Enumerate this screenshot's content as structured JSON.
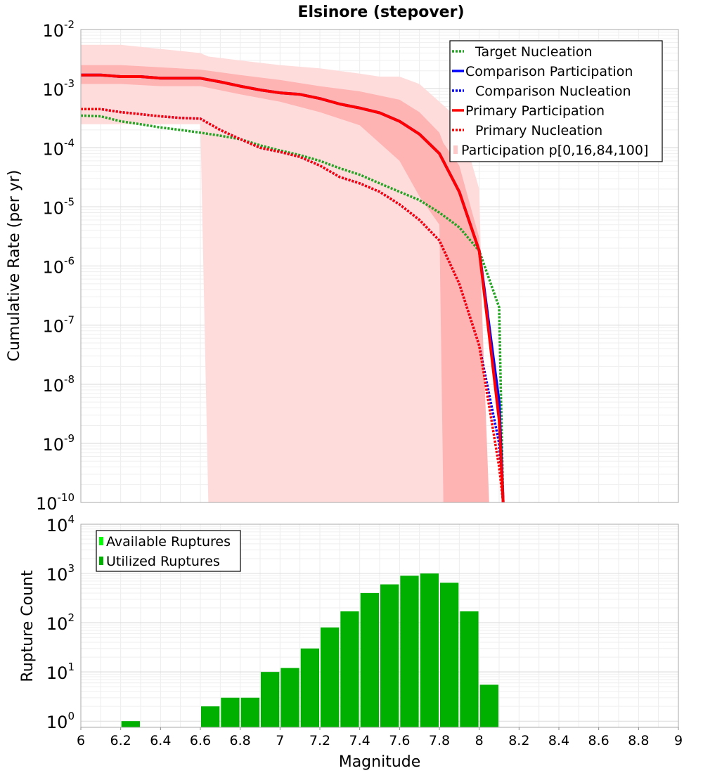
{
  "title": "Elsinore (stepover)",
  "chart_data": [
    {
      "type": "line",
      "title": "Elsinore (stepover)",
      "xlabel": "",
      "ylabel": "Cumulative Rate (per yr)",
      "xlim": [
        6,
        9
      ],
      "ylim": [
        1e-10,
        0.01
      ],
      "yscale": "log",
      "grid": true,
      "legend_position": "top-right",
      "yticks": [
        {
          "exp": "-2"
        },
        {
          "exp": "-3"
        },
        {
          "exp": "-4"
        },
        {
          "exp": "-5"
        },
        {
          "exp": "-6"
        },
        {
          "exp": "-7"
        },
        {
          "exp": "-8"
        },
        {
          "exp": "-9"
        },
        {
          "exp": "-10"
        }
      ],
      "legend": [
        {
          "label": "Target Nucleation",
          "color": "#22a322",
          "style": "dotted"
        },
        {
          "label": "Comparison Participation",
          "color": "#0000ff",
          "style": "solid"
        },
        {
          "label": "Comparison Nucleation",
          "color": "#0000ff",
          "style": "dotted"
        },
        {
          "label": "Primary Participation",
          "color": "#ff0000",
          "style": "solid"
        },
        {
          "label": "Primary Nucleation",
          "color": "#ff0000",
          "style": "dotted"
        },
        {
          "label": "Participation p[0,16,84,100]",
          "color": "#ffc8c8",
          "style": "band"
        }
      ],
      "series": [
        {
          "name": "Target Nucleation",
          "color": "#22a322",
          "style": "dotted",
          "x": [
            6.0,
            6.1,
            6.2,
            6.3,
            6.4,
            6.5,
            6.6,
            6.7,
            6.8,
            6.9,
            7.0,
            7.1,
            7.2,
            7.3,
            7.4,
            7.5,
            7.6,
            7.7,
            7.8,
            7.9,
            8.0,
            8.1,
            8.12
          ],
          "y": [
            0.00035,
            0.00034,
            0.00028,
            0.00025,
            0.00022,
            0.0002,
            0.00018,
            0.00016,
            0.00014,
            0.00011,
            9e-05,
            7.5e-05,
            6e-05,
            4.5e-05,
            3.5e-05,
            2.5e-05,
            1.8e-05,
            1.3e-05,
            8e-06,
            4.5e-06,
            1.8e-06,
            2e-07,
            1e-10
          ]
        },
        {
          "name": "Comparison Participation",
          "color": "#0000ff",
          "style": "solid",
          "x": [
            6.0,
            6.1,
            6.2,
            6.3,
            6.4,
            6.5,
            6.6,
            6.7,
            6.8,
            6.9,
            7.0,
            7.1,
            7.2,
            7.3,
            7.4,
            7.5,
            7.6,
            7.7,
            7.8,
            7.9,
            8.0,
            8.1,
            8.12
          ],
          "y": [
            0.0017,
            0.0017,
            0.0016,
            0.0016,
            0.0015,
            0.0015,
            0.0015,
            0.0013,
            0.0011,
            0.00095,
            0.00085,
            0.0008,
            0.00068,
            0.00055,
            0.00047,
            0.00039,
            0.00028,
            0.00017,
            8e-05,
            1.8e-05,
            1.8e-06,
            5e-09,
            1e-10
          ]
        },
        {
          "name": "Comparison Nucleation",
          "color": "#0000ff",
          "style": "dotted",
          "x": [
            6.0,
            6.1,
            6.2,
            6.3,
            6.4,
            6.5,
            6.6,
            6.7,
            6.8,
            6.9,
            7.0,
            7.1,
            7.2,
            7.3,
            7.4,
            7.5,
            7.6,
            7.7,
            7.8,
            7.9,
            8.0,
            8.1,
            8.12
          ],
          "y": [
            0.00045,
            0.00045,
            0.0004,
            0.00037,
            0.00034,
            0.00032,
            0.00031,
            0.0002,
            0.00014,
            0.0001,
            8.5e-05,
            7e-05,
            5e-05,
            3.2e-05,
            2.5e-05,
            1.8e-05,
            1.1e-05,
            6e-06,
            2.7e-06,
            5e-07,
            4.5e-08,
            1e-09,
            1e-10
          ]
        },
        {
          "name": "Primary Participation",
          "color": "#ff0000",
          "style": "solid",
          "x": [
            6.0,
            6.1,
            6.2,
            6.3,
            6.4,
            6.5,
            6.6,
            6.7,
            6.8,
            6.9,
            7.0,
            7.1,
            7.2,
            7.3,
            7.4,
            7.5,
            7.6,
            7.7,
            7.8,
            7.9,
            8.0,
            8.1,
            8.12
          ],
          "y": [
            0.0017,
            0.0017,
            0.0016,
            0.0016,
            0.0015,
            0.0015,
            0.0015,
            0.0013,
            0.0011,
            0.00095,
            0.00085,
            0.0008,
            0.00068,
            0.00055,
            0.00047,
            0.00039,
            0.00028,
            0.00017,
            8e-05,
            1.8e-05,
            1.8e-06,
            2.5e-09,
            1e-10
          ]
        },
        {
          "name": "Primary Nucleation",
          "color": "#ff0000",
          "style": "dotted",
          "x": [
            6.0,
            6.1,
            6.2,
            6.3,
            6.4,
            6.5,
            6.6,
            6.7,
            6.8,
            6.9,
            7.0,
            7.1,
            7.2,
            7.3,
            7.4,
            7.5,
            7.6,
            7.7,
            7.8,
            7.9,
            8.0,
            8.1,
            8.12
          ],
          "y": [
            0.00045,
            0.00045,
            0.0004,
            0.00037,
            0.00034,
            0.00032,
            0.00031,
            0.0002,
            0.00014,
            0.0001,
            8.5e-05,
            7e-05,
            5e-05,
            3.2e-05,
            2.5e-05,
            1.8e-05,
            1.1e-05,
            6e-06,
            2.7e-06,
            5e-07,
            4.5e-08,
            4e-10,
            1e-10
          ]
        }
      ],
      "bands": [
        {
          "name": "Participation p[0,100]",
          "color": "#ffdcdc",
          "x": [
            6.0,
            6.2,
            6.6,
            6.64,
            6.8,
            7.0,
            7.2,
            7.4,
            7.5,
            7.6,
            7.7,
            7.8,
            7.9,
            8.0,
            8.04
          ],
          "lower": [
            0.00025,
            0.00025,
            0.00025,
            1e-10,
            1e-10,
            1e-10,
            1e-10,
            1e-10,
            1e-10,
            1e-10,
            1e-10,
            1e-10,
            1e-10,
            1e-10,
            1e-10
          ],
          "upper": [
            0.0055,
            0.0055,
            0.004,
            0.0035,
            0.003,
            0.0025,
            0.0022,
            0.0018,
            0.0016,
            0.0016,
            0.0012,
            0.0006,
            0.0003,
            2e-05,
            1e-10
          ]
        },
        {
          "name": "Participation p[16,84]",
          "color": "#ffb4b4",
          "x": [
            6.0,
            6.2,
            6.4,
            6.6,
            6.8,
            7.0,
            7.2,
            7.4,
            7.6,
            7.7,
            7.8,
            7.82,
            7.9,
            8.0,
            8.05
          ],
          "lower": [
            0.0012,
            0.0012,
            0.0011,
            0.0011,
            0.0008,
            0.0006,
            0.0004,
            0.00024,
            6e-05,
            1.5e-05,
            5e-06,
            1e-10,
            1e-10,
            1e-10,
            1e-10
          ],
          "upper": [
            0.0025,
            0.0025,
            0.0023,
            0.0021,
            0.0017,
            0.0014,
            0.0011,
            0.0009,
            0.00065,
            0.0004,
            0.00018,
            0.00012,
            5e-05,
            3e-06,
            1e-10
          ]
        }
      ]
    },
    {
      "type": "bar",
      "title": "",
      "xlabel": "Magnitude",
      "ylabel": "Rupture Count",
      "xlim": [
        6,
        9
      ],
      "ylim": [
        0.75,
        10000
      ],
      "yscale": "log",
      "grid": true,
      "legend_position": "top-left",
      "xticks": [
        "6",
        "6.2",
        "6.4",
        "6.6",
        "6.8",
        "7",
        "7.2",
        "7.4",
        "7.6",
        "7.8",
        "8",
        "8.2",
        "8.4",
        "8.6",
        "8.8",
        "9"
      ],
      "yticks": [
        {
          "exp": "4"
        },
        {
          "exp": "3"
        },
        {
          "exp": "2"
        },
        {
          "exp": "1"
        },
        {
          "exp": "0"
        }
      ],
      "legend": [
        {
          "label": "Available Ruptures",
          "color": "#00ff00"
        },
        {
          "label": "Utilized Ruptures",
          "color": "#00b000"
        }
      ],
      "bar_width": 0.1,
      "series": [
        {
          "name": "Utilized Ruptures",
          "color": "#00b000",
          "x": [
            6.25,
            6.65,
            6.75,
            6.85,
            6.95,
            7.05,
            7.15,
            7.25,
            7.35,
            7.45,
            7.55,
            7.65,
            7.75,
            7.85,
            7.95,
            8.05
          ],
          "values": [
            1,
            2,
            3,
            3,
            10,
            12,
            30,
            80,
            170,
            400,
            600,
            900,
            1000,
            650,
            170,
            5.5
          ]
        }
      ]
    }
  ]
}
